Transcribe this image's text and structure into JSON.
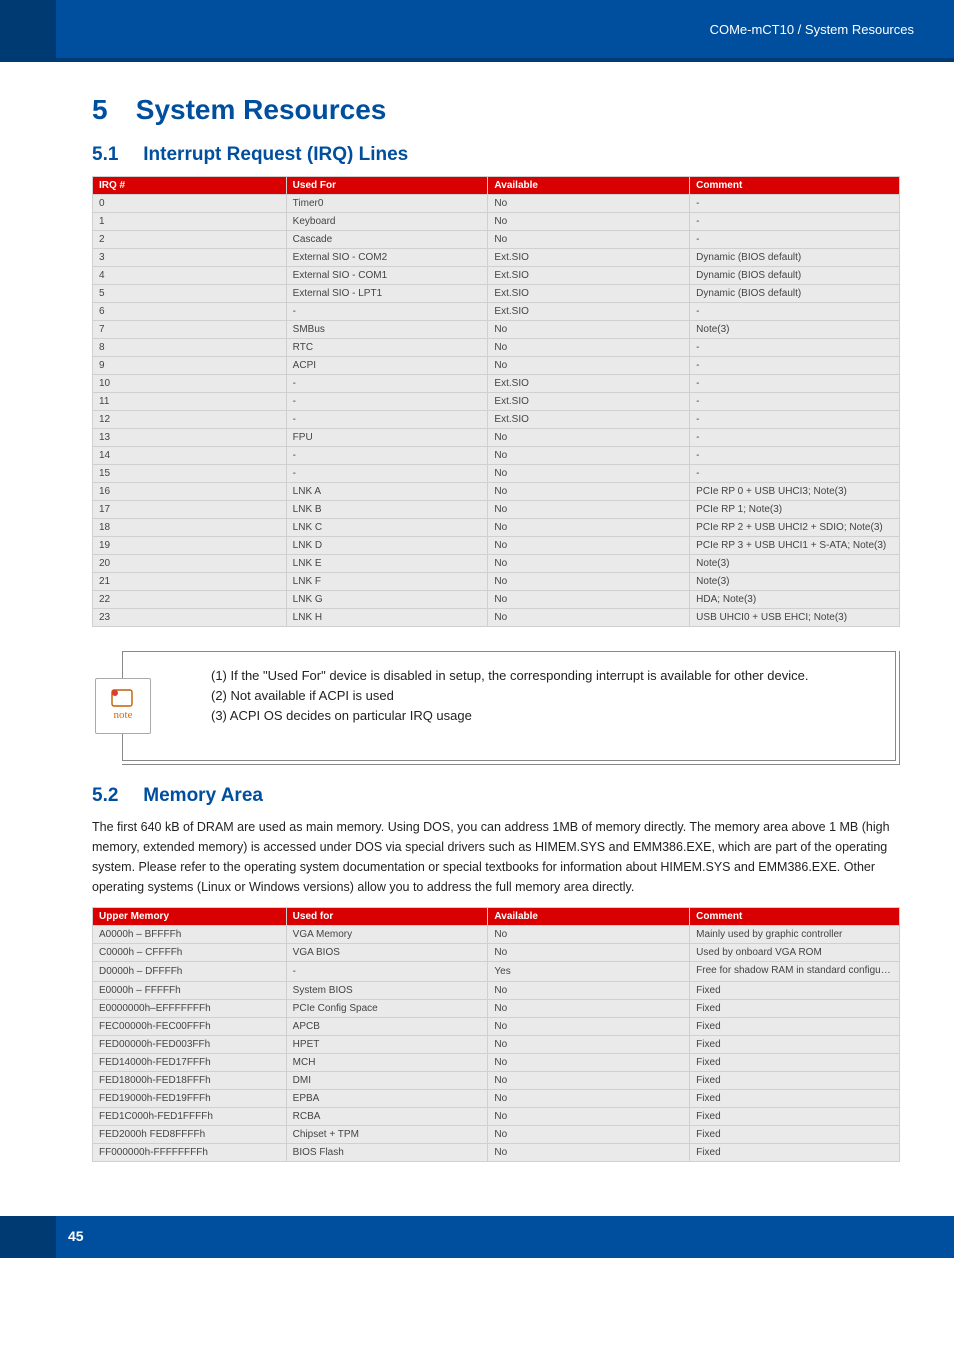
{
  "header": {
    "breadcrumb": "COMe-mCT10 / System Resources"
  },
  "chapter": {
    "number": "5",
    "title": "System Resources"
  },
  "sections": {
    "irq": {
      "number": "5.1",
      "title": "Interrupt Request (IRQ) Lines"
    },
    "mem": {
      "number": "5.2",
      "title": "Memory Area"
    }
  },
  "irq_table": {
    "headers": [
      "IRQ #",
      "Used For",
      "Available",
      "Comment"
    ],
    "rows": [
      [
        "0",
        "Timer0",
        "No",
        "-"
      ],
      [
        "1",
        "Keyboard",
        "No",
        "-"
      ],
      [
        "2",
        "Cascade",
        "No",
        "-"
      ],
      [
        "3",
        "External SIO - COM2",
        "Ext.SIO",
        "Dynamic (BIOS default)"
      ],
      [
        "4",
        "External SIO - COM1",
        "Ext.SIO",
        "Dynamic (BIOS default)"
      ],
      [
        "5",
        "External SIO - LPT1",
        "Ext.SIO",
        "Dynamic (BIOS default)"
      ],
      [
        "6",
        "-",
        "Ext.SIO",
        "-"
      ],
      [
        "7",
        "SMBus",
        "No",
        "Note(3)"
      ],
      [
        "8",
        "RTC",
        "No",
        "-"
      ],
      [
        "9",
        "ACPI",
        "No",
        "-"
      ],
      [
        "10",
        "-",
        "Ext.SIO",
        "-"
      ],
      [
        "11",
        "-",
        "Ext.SIO",
        "-"
      ],
      [
        "12",
        "-",
        "Ext.SIO",
        "-"
      ],
      [
        "13",
        "FPU",
        "No",
        "-"
      ],
      [
        "14",
        "-",
        "No",
        "-"
      ],
      [
        "15",
        "-",
        "No",
        "-"
      ],
      [
        "16",
        "LNK A",
        "No",
        "PCIe RP 0 + USB UHCI3; Note(3)"
      ],
      [
        "17",
        "LNK B",
        "No",
        "PCIe RP 1; Note(3)"
      ],
      [
        "18",
        "LNK C",
        "No",
        "PCIe RP 2 + USB UHCI2 + SDIO; Note(3)"
      ],
      [
        "19",
        "LNK D",
        "No",
        "PCIe RP 3 + USB UHCI1 + S-ATA; Note(3)"
      ],
      [
        "20",
        "LNK E",
        "No",
        "Note(3)"
      ],
      [
        "21",
        "LNK F",
        "No",
        "Note(3)"
      ],
      [
        "22",
        "LNK G",
        "No",
        "HDA; Note(3)"
      ],
      [
        "23",
        "LNK H",
        "No",
        "USB UHCI0 + USB EHCI; Note(3)"
      ]
    ]
  },
  "notes": {
    "n1": "(1) If the \"Used For\" device is disabled in setup, the corresponding interrupt is available for other device.",
    "n2": "(2) Not available if ACPI is used",
    "n3": "(3) ACPI OS decides on particular IRQ usage",
    "icon_label": "note"
  },
  "mem_intro": "The first 640 kB of DRAM are used as main memory. Using DOS, you can address 1MB of memory directly. The memory area above 1 MB (high memory, extended memory) is accessed under DOS via special drivers such as HIMEM.SYS and EMM386.EXE, which are part of the operating system. Please refer to the operating system documentation or special textbooks for information about HIMEM.SYS and EMM386.EXE. Other operating systems (Linux or Windows versions) allow you to address the full memory area directly.",
  "mem_table": {
    "headers": [
      "Upper Memory",
      "Used for",
      "Available",
      "Comment"
    ],
    "rows": [
      [
        "A0000h – BFFFFh",
        "VGA Memory",
        "No",
        "Mainly used by graphic controller"
      ],
      [
        "C0000h – CFFFFh",
        "VGA BIOS",
        "No",
        "Used by onboard VGA ROM"
      ],
      [
        "D0000h – DFFFFh",
        "-",
        "Yes",
        "Free for shadow RAM in standard configurations."
      ],
      [
        "E0000h – FFFFFh",
        "System BIOS",
        "No",
        "Fixed"
      ],
      [
        "E0000000h–EFFFFFFFh",
        "PCIe Config Space",
        "No",
        "Fixed"
      ],
      [
        "FEC00000h-FEC00FFFh",
        "APCB",
        "No",
        "Fixed"
      ],
      [
        "FED00000h-FED003FFh",
        "HPET",
        "No",
        "Fixed"
      ],
      [
        "FED14000h-FED17FFFh",
        "MCH",
        "No",
        "Fixed"
      ],
      [
        "FED18000h-FED18FFFh",
        "DMI",
        "No",
        "Fixed"
      ],
      [
        "FED19000h-FED19FFFh",
        "EPBA",
        "No",
        "Fixed"
      ],
      [
        "FED1C000h-FED1FFFFh",
        "RCBA",
        "No",
        "Fixed"
      ],
      [
        "FED2000h FED8FFFFh",
        "Chipset + TPM",
        "No",
        "Fixed"
      ],
      [
        "FF000000h-FFFFFFFFh",
        "BIOS Flash",
        "No",
        "Fixed"
      ]
    ]
  },
  "footer": {
    "page": "45"
  },
  "colors": {
    "brand_blue": "#004f9e",
    "dark_blue": "#003a73",
    "table_header": "#d80000",
    "row_bg": "#eaeaea",
    "border": "#d0d0d0"
  }
}
